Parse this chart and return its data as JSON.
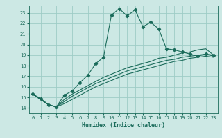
{
  "xlabel": "Humidex (Indice chaleur)",
  "bg_color": "#cce8e4",
  "grid_color": "#9eccc6",
  "line_color": "#1a6b5a",
  "xlim": [
    -0.5,
    23.5
  ],
  "ylim": [
    13.5,
    23.7
  ],
  "yticks": [
    14,
    15,
    16,
    17,
    18,
    19,
    20,
    21,
    22,
    23
  ],
  "xticks": [
    0,
    1,
    2,
    3,
    4,
    5,
    6,
    7,
    8,
    9,
    10,
    11,
    12,
    13,
    14,
    15,
    16,
    17,
    18,
    19,
    20,
    21,
    22,
    23
  ],
  "series1_x": [
    0,
    1,
    2,
    3,
    4,
    5,
    6,
    7,
    8,
    9,
    10,
    11,
    12,
    13,
    14,
    15,
    16,
    17,
    18,
    19,
    20,
    21,
    22,
    23
  ],
  "series1_y": [
    15.3,
    14.9,
    14.3,
    14.1,
    15.2,
    15.6,
    16.4,
    17.1,
    18.2,
    18.8,
    22.8,
    23.4,
    22.7,
    23.3,
    21.7,
    22.1,
    21.5,
    19.6,
    19.5,
    19.3,
    19.1,
    18.9,
    19.1,
    19.0
  ],
  "series2_x": [
    0,
    2,
    3,
    4,
    5,
    6,
    7,
    8,
    9,
    10,
    11,
    12,
    13,
    14,
    15,
    16,
    17,
    18,
    19,
    20,
    21,
    22,
    23
  ],
  "series2_y": [
    15.3,
    14.3,
    14.1,
    14.8,
    15.3,
    15.7,
    16.1,
    16.5,
    16.9,
    17.2,
    17.5,
    17.8,
    18.0,
    18.2,
    18.4,
    18.7,
    18.8,
    19.0,
    19.2,
    19.3,
    19.5,
    19.6,
    19.0
  ],
  "series3_x": [
    0,
    2,
    3,
    4,
    5,
    6,
    7,
    8,
    9,
    10,
    11,
    12,
    13,
    14,
    15,
    16,
    17,
    18,
    19,
    20,
    21,
    22,
    23
  ],
  "series3_y": [
    15.3,
    14.3,
    14.1,
    14.6,
    15.1,
    15.5,
    15.9,
    16.3,
    16.6,
    16.9,
    17.2,
    17.5,
    17.7,
    17.9,
    18.1,
    18.3,
    18.5,
    18.6,
    18.8,
    18.9,
    19.0,
    19.1,
    18.9
  ],
  "series4_x": [
    0,
    2,
    3,
    4,
    5,
    6,
    7,
    8,
    9,
    10,
    11,
    12,
    13,
    14,
    15,
    16,
    17,
    18,
    19,
    20,
    21,
    22,
    23
  ],
  "series4_y": [
    15.3,
    14.3,
    14.1,
    14.4,
    14.8,
    15.2,
    15.6,
    16.0,
    16.3,
    16.6,
    16.9,
    17.2,
    17.4,
    17.6,
    17.8,
    18.0,
    18.2,
    18.4,
    18.5,
    18.7,
    18.8,
    18.9,
    18.8
  ]
}
